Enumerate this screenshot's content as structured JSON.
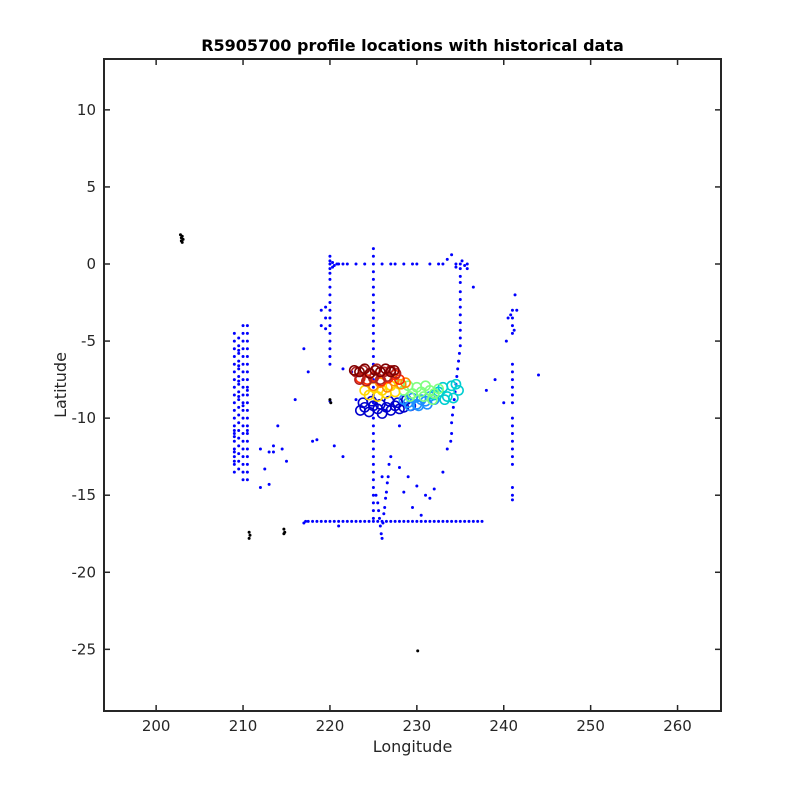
{
  "chart_data": {
    "type": "scatter",
    "title": "R5905700 profile locations with historical data",
    "xlabel": "Longitude",
    "ylabel": "Latitude",
    "xlim": [
      194,
      265
    ],
    "ylim": [
      -29,
      13.3
    ],
    "xticks": [
      200,
      210,
      220,
      230,
      240,
      250,
      260
    ],
    "yticks": [
      10,
      5,
      0,
      -5,
      -10,
      -15,
      -20,
      -25
    ],
    "grid": false,
    "series": [
      {
        "marker": "dot",
        "color": "#0000ff",
        "x": [
          220.0,
          220.0,
          220.0,
          220.0,
          220.0,
          220.0,
          220.0,
          220.0,
          220.0,
          220.0,
          220.0,
          220.0,
          220.0,
          220.0,
          220.0,
          220.0,
          220.0,
          219.5,
          219.5,
          219.5,
          219.0,
          219.0,
          220.3,
          220.3,
          220.5,
          220.8,
          221.0,
          221.5,
          222.0,
          223.0,
          224.0,
          226.0,
          227.0,
          227.5,
          228.5,
          229.5,
          230.0,
          231.5,
          232.5,
          233.0,
          233.5,
          234.0,
          234.5,
          235.0,
          235.2,
          235.5,
          235.8,
          234.5,
          225.0,
          225.0,
          225.0,
          225.0,
          225.0,
          225.0,
          225.0,
          225.0,
          225.0,
          225.0,
          225.0,
          225.0,
          225.0,
          225.0,
          225.0,
          225.0,
          225.0,
          225.0,
          225.0,
          225.0,
          225.0,
          225.0,
          225.0,
          225.0,
          225.0,
          225.0,
          225.0,
          225.0,
          225.0,
          225.0,
          225.0,
          225.0,
          225.0,
          225.0,
          225.0,
          225.0,
          225.3,
          225.5,
          225.6,
          225.7,
          225.8,
          225.9,
          226.0,
          226.1,
          226.2,
          226.3,
          226.4,
          226.5,
          226.6,
          226.7,
          226.8,
          235.0,
          235.0,
          235.0,
          235.0,
          235.0,
          235.0,
          235.0,
          235.0,
          235.0,
          235.0,
          235.0,
          234.9,
          234.8,
          234.7,
          234.6,
          234.5,
          234.4,
          234.3,
          234.2,
          234.1,
          234.0,
          234.0,
          233.9,
          233.5,
          235.8,
          236.5,
          221.5,
          222.5,
          223.0,
          223.0,
          221.5,
          220.5,
          218.5,
          218.0,
          217.5,
          217.0,
          220.0,
          221.0,
          217.0,
          217.2,
          217.5,
          218.0,
          218.5,
          219.0,
          219.5,
          220.0,
          220.5,
          221.0,
          221.5,
          222.0,
          222.5,
          223.0,
          223.5,
          224.0,
          224.5,
          225.0,
          225.5,
          226.0,
          226.5,
          227.0,
          227.5,
          228.0,
          228.5,
          229.0,
          229.5,
          230.0,
          230.5,
          231.0,
          231.5,
          232.0,
          232.5,
          233.0,
          233.5,
          234.0,
          234.5,
          235.0,
          235.5,
          236.0,
          236.5,
          237.0,
          237.5,
          209.0,
          209.0,
          209.0,
          209.0,
          209.0,
          209.0,
          209.0,
          209.0,
          209.0,
          209.0,
          209.0,
          209.0,
          209.0,
          209.0,
          209.0,
          209.0,
          209.0,
          209.0,
          209.0,
          209.0,
          209.0,
          209.0,
          209.0,
          209.5,
          209.5,
          209.5,
          209.5,
          209.5,
          209.5,
          209.5,
          209.5,
          209.5,
          209.5,
          209.5,
          209.5,
          209.5,
          209.5,
          209.5,
          209.5,
          209.5,
          209.5,
          209.5,
          209.5,
          209.5,
          209.5,
          210.0,
          210.0,
          210.0,
          210.0,
          210.0,
          210.0,
          210.0,
          210.0,
          210.0,
          210.0,
          210.0,
          210.0,
          210.0,
          210.0,
          210.0,
          210.0,
          210.0,
          210.0,
          210.0,
          210.0,
          210.0,
          210.0,
          210.5,
          210.5,
          210.5,
          210.5,
          210.5,
          210.5,
          210.5,
          210.5,
          210.5,
          210.5,
          210.5,
          210.5,
          210.5,
          210.5,
          210.5,
          210.5,
          210.5,
          210.5,
          210.5,
          210.5,
          210.5,
          210.5,
          210.5,
          212.0,
          212.5,
          213.0,
          213.5,
          213.0,
          212.0,
          214.0,
          214.5,
          215.0,
          213.5,
          216.0,
          241.0,
          241.0,
          241.0,
          241.0,
          241.0,
          241.0,
          241.0,
          241.0,
          241.0,
          241.0,
          241.0,
          241.0,
          241.0,
          241.0,
          241.0,
          241.0,
          241.0,
          241.0,
          241.0,
          241.0,
          240.5,
          240.8,
          241.3,
          241.5,
          241.2,
          240.3,
          240.0,
          239.0,
          238.0,
          244.0,
          226.0,
          227.0,
          228.0,
          229.0,
          230.0,
          231.0,
          232.0,
          233.0,
          228.5,
          229.5,
          230.5,
          231.5,
          226.5,
          228.0
        ],
        "y": [
          0.5,
          0.2,
          0.0,
          -0.3,
          -0.6,
          -1.0,
          -1.5,
          -2.0,
          -2.5,
          -3.0,
          -3.5,
          -4.0,
          -4.5,
          -5.0,
          -5.5,
          -6.0,
          -6.5,
          -2.8,
          -3.5,
          -4.2,
          -3.0,
          -4.0,
          0.1,
          -0.2,
          -0.1,
          0.0,
          0.0,
          0.0,
          0.0,
          0.0,
          0.0,
          0.0,
          0.0,
          0.0,
          0.0,
          0.0,
          0.0,
          0.0,
          0.0,
          0.0,
          0.3,
          0.6,
          0.0,
          0.0,
          0.2,
          -0.1,
          0.0,
          -0.2,
          1.0,
          0.5,
          0.0,
          -0.5,
          -1.0,
          -1.5,
          -2.0,
          -2.5,
          -3.0,
          -3.5,
          -4.0,
          -4.5,
          -5.0,
          -5.5,
          -6.0,
          -6.5,
          -7.0,
          -7.5,
          -8.0,
          -8.5,
          -9.0,
          -9.5,
          -10.0,
          -10.5,
          -11.0,
          -11.5,
          -12.0,
          -12.5,
          -13.0,
          -13.5,
          -14.0,
          -14.5,
          -15.0,
          -15.5,
          -16.0,
          -16.5,
          -15.0,
          -15.5,
          -16.0,
          -16.5,
          -17.0,
          -17.5,
          -17.8,
          -16.8,
          -16.2,
          -15.8,
          -15.2,
          -14.8,
          -14.2,
          -13.8,
          -13.0,
          -0.3,
          -0.8,
          -1.2,
          -1.8,
          -2.3,
          -2.8,
          -3.3,
          -3.8,
          -4.3,
          -4.8,
          -5.3,
          -5.8,
          -6.3,
          -6.8,
          -7.3,
          -7.8,
          -8.3,
          -8.8,
          -9.3,
          -9.8,
          -10.3,
          -11.0,
          -11.5,
          -12.0,
          -0.3,
          -1.5,
          -6.8,
          -7.0,
          -7.3,
          -8.8,
          -12.5,
          -11.8,
          -11.4,
          -11.5,
          -7.0,
          -5.5,
          -8.9,
          -17.0,
          -16.8,
          -16.7,
          -16.7,
          -16.7,
          -16.7,
          -16.7,
          -16.7,
          -16.7,
          -16.7,
          -16.7,
          -16.7,
          -16.7,
          -16.7,
          -16.7,
          -16.7,
          -16.7,
          -16.7,
          -16.7,
          -16.7,
          -16.7,
          -16.7,
          -16.7,
          -16.7,
          -16.7,
          -16.7,
          -16.7,
          -16.7,
          -16.7,
          -16.7,
          -16.7,
          -16.7,
          -16.7,
          -16.7,
          -16.7,
          -16.7,
          -16.7,
          -16.7,
          -16.7,
          -16.7,
          -16.7,
          -16.7,
          -16.7,
          -16.7,
          -4.5,
          -5.0,
          -5.5,
          -6.0,
          -6.5,
          -7.0,
          -7.5,
          -8.0,
          -8.5,
          -9.0,
          -9.5,
          -10.0,
          -10.5,
          -11.0,
          -11.5,
          -12.0,
          -12.5,
          -13.0,
          -13.5,
          -10.8,
          -11.2,
          -12.2,
          -12.8,
          -4.8,
          -5.3,
          -5.8,
          -6.3,
          -6.8,
          -7.3,
          -7.8,
          -8.3,
          -8.8,
          -9.3,
          -9.8,
          -10.3,
          -10.8,
          -11.3,
          -11.8,
          -12.3,
          -12.8,
          -13.3,
          -5.6,
          -6.6,
          -7.6,
          -8.6,
          -4.0,
          -4.5,
          -5.0,
          -5.5,
          -6.0,
          -6.5,
          -7.0,
          -7.5,
          -8.0,
          -8.5,
          -9.0,
          -9.5,
          -10.0,
          -10.5,
          -11.0,
          -11.5,
          -12.0,
          -12.5,
          -13.0,
          -13.5,
          -14.0,
          -9.2,
          -4.0,
          -4.5,
          -5.0,
          -5.5,
          -6.0,
          -6.5,
          -7.0,
          -7.5,
          -8.0,
          -8.5,
          -9.0,
          -9.5,
          -10.0,
          -10.5,
          -11.0,
          -11.5,
          -12.0,
          -12.5,
          -13.0,
          -13.5,
          -14.0,
          -8.2,
          -10.8,
          -12.0,
          -13.3,
          -14.3,
          -12.2,
          -12.2,
          -14.5,
          -10.5,
          -12.0,
          -12.8,
          -11.8,
          -8.8,
          -3.0,
          -3.5,
          -4.0,
          -4.5,
          -6.5,
          -7.0,
          -7.5,
          -8.0,
          -8.5,
          -9.0,
          -10.0,
          -10.5,
          -11.0,
          -11.5,
          -12.0,
          -12.5,
          -13.0,
          -14.5,
          -15.0,
          -15.3,
          -3.5,
          -3.3,
          -2.0,
          -3.0,
          -4.3,
          -5.0,
          -9.0,
          -7.5,
          -8.2,
          -7.2,
          -13.8,
          -12.5,
          -13.2,
          -13.8,
          -14.4,
          -15.0,
          -14.6,
          -13.5,
          -14.8,
          -15.8,
          -16.3,
          -15.2,
          -9.5,
          -10.5
        ]
      },
      {
        "marker": "dot",
        "color": "#000000",
        "x": [
          202.8,
          202.9,
          203.0,
          203.1,
          202.9,
          203.0,
          220.0,
          220.1,
          210.7,
          210.8,
          210.7,
          214.7,
          214.8,
          214.7,
          230.1
        ],
        "y": [
          1.9,
          1.7,
          1.8,
          1.6,
          1.5,
          1.4,
          -8.8,
          -9.0,
          -17.4,
          -17.6,
          -17.8,
          -17.2,
          -17.4,
          -17.5,
          -25.1
        ]
      },
      {
        "marker": "circle",
        "color": "#0000cd",
        "x": [
          223.5,
          224.0,
          224.5,
          225.0,
          225.5,
          226.0,
          226.5,
          227.0,
          227.5,
          228.0,
          228.5,
          223.8,
          224.8,
          225.8,
          226.8,
          227.8,
          228.8,
          229.3
        ],
        "y": [
          -9.5,
          -9.3,
          -9.6,
          -9.2,
          -9.4,
          -9.7,
          -9.3,
          -9.5,
          -9.2,
          -9.4,
          -9.3,
          -9.0,
          -8.9,
          -9.1,
          -8.9,
          -9.0,
          -8.8,
          -9.2
        ]
      },
      {
        "marker": "circle",
        "color": "#1e90ff",
        "x": [
          228.5,
          229.0,
          229.5,
          230.0,
          230.5,
          231.0,
          231.5,
          232.0,
          229.2,
          230.2,
          231.2
        ],
        "y": [
          -8.8,
          -9.0,
          -8.7,
          -9.1,
          -8.8,
          -8.9,
          -8.6,
          -8.8,
          -9.2,
          -9.2,
          -9.1
        ]
      },
      {
        "marker": "circle",
        "color": "#00ced1",
        "x": [
          232.0,
          232.5,
          233.0,
          233.5,
          234.0,
          234.5,
          234.8,
          233.2,
          234.2
        ],
        "y": [
          -8.5,
          -8.3,
          -8.0,
          -8.6,
          -7.9,
          -7.8,
          -8.2,
          -8.8,
          -8.7
        ]
      },
      {
        "marker": "circle",
        "color": "#7fff7f",
        "x": [
          228.0,
          228.5,
          229.0,
          229.5,
          230.0,
          230.5,
          231.0,
          231.5,
          232.0,
          232.5,
          229.2,
          230.8,
          231.8
        ],
        "y": [
          -7.8,
          -8.2,
          -7.9,
          -8.4,
          -8.0,
          -8.3,
          -7.9,
          -8.2,
          -8.4,
          -8.1,
          -8.6,
          -8.6,
          -8.8
        ]
      },
      {
        "marker": "circle",
        "color": "#ffd700",
        "x": [
          224.0,
          224.5,
          225.0,
          225.5,
          226.0,
          226.5,
          227.0,
          227.5
        ],
        "y": [
          -8.2,
          -8.5,
          -8.0,
          -8.6,
          -8.2,
          -8.4,
          -7.9,
          -8.3
        ]
      },
      {
        "marker": "circle",
        "color": "#ff8c00",
        "x": [
          224.2,
          225.0,
          225.8,
          226.6,
          227.4,
          228.2,
          228.7
        ],
        "y": [
          -7.6,
          -7.9,
          -7.7,
          -8.0,
          -7.6,
          -7.8,
          -7.7
        ]
      },
      {
        "marker": "circle",
        "color": "#ff2a00",
        "x": [
          223.5,
          224.3,
          225.1,
          225.9,
          226.7,
          227.5,
          228.0
        ],
        "y": [
          -7.4,
          -7.5,
          -7.3,
          -7.6,
          -7.4,
          -7.2,
          -7.5
        ]
      },
      {
        "marker": "circle",
        "color": "#b22222",
        "x": [
          223.0,
          223.8,
          224.6,
          225.4,
          226.2,
          227.0,
          227.6,
          223.4,
          224.2,
          225.0,
          225.8,
          226.6
        ],
        "y": [
          -7.0,
          -6.9,
          -7.1,
          -6.8,
          -7.0,
          -6.9,
          -7.1,
          -7.5,
          -7.6,
          -7.4,
          -7.5,
          -7.3
        ]
      },
      {
        "marker": "circle",
        "color": "#800000",
        "x": [
          222.8,
          223.4,
          224.0,
          224.6,
          225.2,
          225.8,
          226.4,
          227.0,
          227.4
        ],
        "y": [
          -6.9,
          -7.0,
          -6.8,
          -7.1,
          -6.9,
          -7.0,
          -6.8,
          -7.0,
          -6.9
        ]
      }
    ]
  }
}
